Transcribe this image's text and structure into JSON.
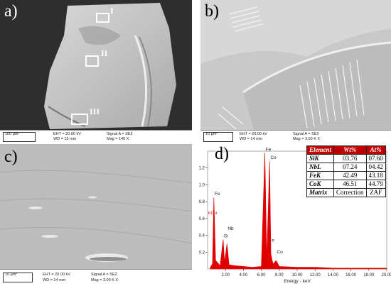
{
  "panels": [
    {
      "id": "a",
      "label": "a)",
      "scale": "100 µm*",
      "eht": "EHT = 20.00 kV",
      "wd": "WD = 15 mm",
      "signal": "Signal A = SE2",
      "mag": "Mag = 140 X",
      "regions": [
        "I",
        "II",
        "III"
      ]
    },
    {
      "id": "b",
      "label": "b)",
      "scale": "10 µm*",
      "eht": "EHT = 20.00 kV",
      "wd": "WD = 14 mm",
      "signal": "Signal A = SE2",
      "mag": "Mag = 3.00 K X"
    },
    {
      "id": "c",
      "label": "c)",
      "scale": "10 µm*",
      "eht": "EHT = 20.00 kV",
      "wd": "WD = 14 mm",
      "signal": "Signal A = SE2",
      "mag": "Mag = 3.00 K X"
    }
  ],
  "chart_data": {
    "type": "line",
    "label": "d)",
    "xlabel": "Energy - keV",
    "ylabel": "KCnt",
    "xlim": [
      0,
      20
    ],
    "ylim": [
      0,
      1.4
    ],
    "xticks": [
      "2.00",
      "4.00",
      "6.00",
      "8.00",
      "10.00",
      "12.00",
      "14.00",
      "16.00",
      "18.00",
      "20.00"
    ],
    "yticks": [
      "0.2",
      "0.4",
      "0.6",
      "0.8",
      "1.0",
      "1.2"
    ],
    "series": [
      {
        "values": [
          [
            0.3,
            0.02
          ],
          [
            0.55,
            0.06
          ],
          [
            0.7,
            0.85
          ],
          [
            0.9,
            0.1
          ],
          [
            1.4,
            0.04
          ],
          [
            1.74,
            0.35
          ],
          [
            1.9,
            0.08
          ],
          [
            2.17,
            0.3
          ],
          [
            2.4,
            0.05
          ],
          [
            3.0,
            0.04
          ],
          [
            4.0,
            0.03
          ],
          [
            5.0,
            0.02
          ],
          [
            6.0,
            0.03
          ],
          [
            6.4,
            1.38
          ],
          [
            6.6,
            0.12
          ],
          [
            6.93,
            1.28
          ],
          [
            7.06,
            0.18
          ],
          [
            7.3,
            0.06
          ],
          [
            7.65,
            0.1
          ],
          [
            8.0,
            0.03
          ],
          [
            10,
            0.02
          ],
          [
            12,
            0.02
          ],
          [
            14,
            0.01
          ],
          [
            16,
            0.01
          ],
          [
            18,
            0.01
          ],
          [
            20,
            0.01
          ]
        ]
      }
    ],
    "peaks": [
      {
        "label": "Fe",
        "x": 0.7,
        "y": 0.85
      },
      {
        "label": "Si",
        "x": 1.74,
        "y": 0.35
      },
      {
        "label": "Nb",
        "x": 2.17,
        "y": 0.44
      },
      {
        "label": "Fe",
        "x": 6.4,
        "y": 1.38
      },
      {
        "label": "Co",
        "x": 6.93,
        "y": 1.28
      },
      {
        "label": "e",
        "x": 7.06,
        "y": 0.3
      },
      {
        "label": "Co",
        "x": 7.65,
        "y": 0.16
      }
    ],
    "table": {
      "headers": [
        "Element",
        "Wt%",
        "At%"
      ],
      "rows": [
        [
          "SiK",
          "03.76",
          "07.60"
        ],
        [
          "NbL",
          "07.24",
          "04.42"
        ],
        [
          "FeK",
          "42.49",
          "43.18"
        ],
        [
          "CoK",
          "46.51",
          "44.79"
        ],
        [
          "Matrix",
          "Correction",
          "ZAF"
        ]
      ]
    }
  }
}
